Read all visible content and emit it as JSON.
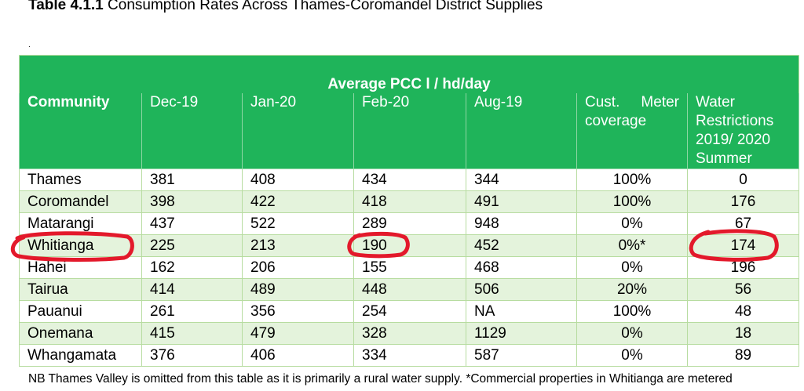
{
  "caption": {
    "number": "Table 4.1.1",
    "title": "Consumption Rates Across Thames-Coromandel District Supplies"
  },
  "stray_mark": ".",
  "table": {
    "super_header": "Average PCC l / hd/day",
    "headers": [
      "Community",
      "Dec-19",
      "Jan-20",
      "Feb-20",
      "Aug-19",
      "Cust. Meter coverage",
      "Water Restrictions 2019/ 2020 Summer"
    ],
    "rows": [
      [
        "Thames",
        "381",
        "408",
        "434",
        "344",
        "100%",
        "0"
      ],
      [
        "Coromandel",
        "398",
        "422",
        "418",
        "491",
        "100%",
        "176"
      ],
      [
        "Matarangi",
        "437",
        "522",
        "289",
        "948",
        "0%",
        "67"
      ],
      [
        "Whitianga",
        "225",
        "213",
        "190",
        "452",
        "0%*",
        "174"
      ],
      [
        "Hahei",
        "162",
        "206",
        "155",
        "468",
        "0%",
        "196"
      ],
      [
        "Tairua",
        "414",
        "489",
        "448",
        "506",
        "20%",
        "56"
      ],
      [
        "Pauanui",
        "261",
        "356",
        "254",
        "NA",
        "100%",
        "48"
      ],
      [
        "Onemana",
        "415",
        "479",
        "328",
        "1129",
        "0%",
        "18"
      ],
      [
        "Whangamata",
        "376",
        "406",
        "334",
        "587",
        "0%",
        "89"
      ]
    ]
  },
  "footnote": "NB Thames Valley is omitted from this table as it is primarily a rural water supply. *Commercial properties in Whitianga are metered",
  "colors": {
    "header_green": "#1fb45a",
    "row_stripe": "#e4f3dc",
    "annotation_red": "#e3192b"
  }
}
